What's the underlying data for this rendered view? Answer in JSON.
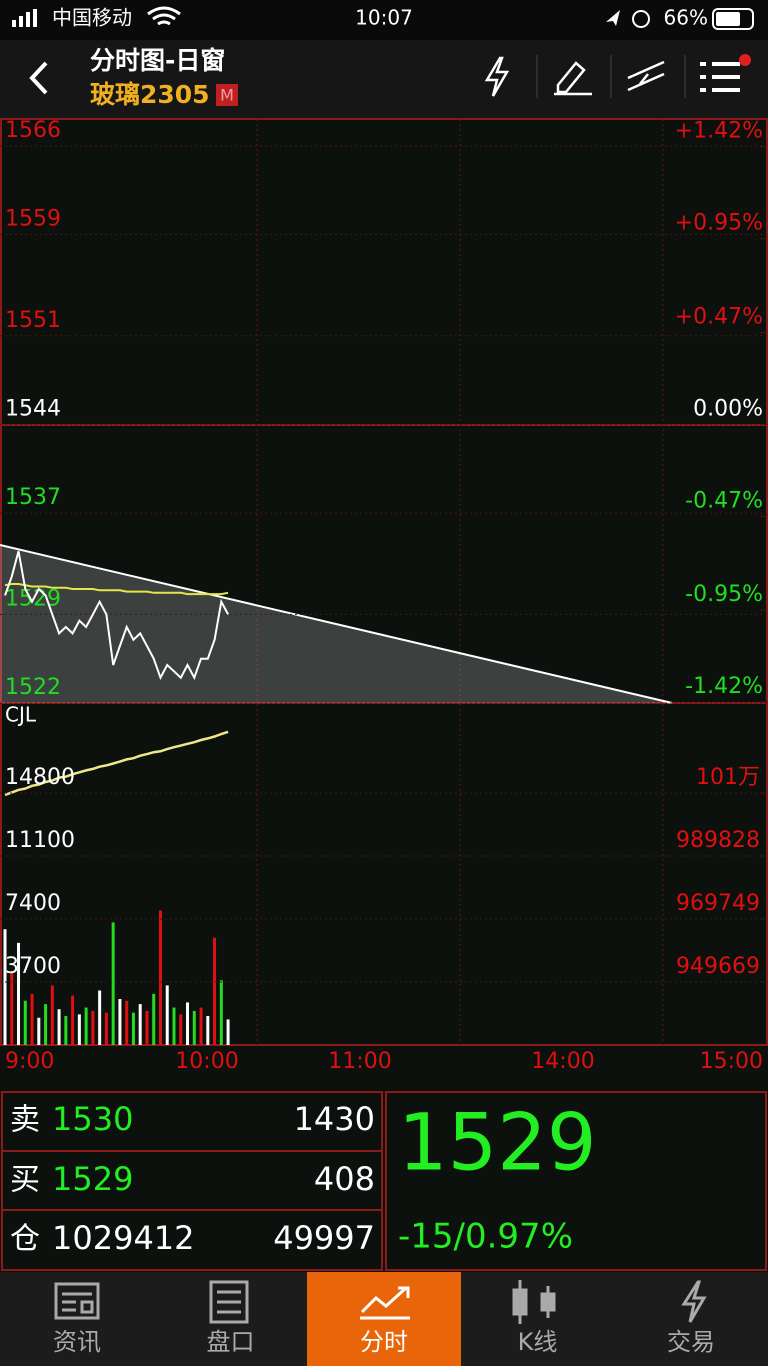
{
  "status_bar": {
    "carrier": "中国移动",
    "time": "10:07",
    "battery": "66%"
  },
  "header": {
    "title": "分时图-日窗",
    "symbol": "玻璃2305",
    "badge": "M"
  },
  "chart_data": [
    {
      "type": "line",
      "series": [
        {
          "color": "#ffffff",
          "values": [
            1530.5,
            1532,
            1534,
            1531,
            1530,
            1531,
            1530.5,
            1529,
            1527.5,
            1528,
            1527.5,
            1528.5,
            1528,
            1529,
            1530,
            1529,
            1525,
            1526.5,
            1528,
            1527,
            1527.5,
            1526.5,
            1525.5,
            1524,
            1525,
            1524.5,
            1524,
            1525,
            1524,
            1525.5,
            1525.5,
            1527,
            1530,
            1529
          ]
        },
        {
          "color": "#e6e64a",
          "values": [
            1531.3,
            1531.4,
            1531.4,
            1531.3,
            1531.2,
            1531.2,
            1531.2,
            1531.1,
            1531.1,
            1531.1,
            1531,
            1531,
            1531,
            1531,
            1530.9,
            1530.9,
            1530.9,
            1530.9,
            1530.8,
            1530.8,
            1530.8,
            1530.8,
            1530.7,
            1530.7,
            1530.7,
            1530.7,
            1530.7,
            1530.6,
            1530.6,
            1530.6,
            1530.6,
            1530.6,
            1530.6,
            1530.7
          ]
        }
      ],
      "ylim": [
        1522,
        1568.2
      ],
      "yticks": [
        1566,
        1559,
        1551,
        1544,
        1537,
        1529,
        1522
      ],
      "ytick_colors": [
        "#e01010",
        "#e01010",
        "#e01010",
        "#ffffff",
        "#22dd22",
        "#22dd22",
        "#22dd22"
      ],
      "y2lim": [
        -1.425,
        1.567
      ],
      "y2ticks": [
        {
          "value": 1.42,
          "label": "+1.42%"
        },
        {
          "value": 0.95,
          "label": "+0.95%"
        },
        {
          "value": 0.47,
          "label": "+0.47%"
        },
        {
          "value": 0,
          "label": "0.00%"
        },
        {
          "value": -0.47,
          "label": "-0.47%"
        },
        {
          "value": -0.95,
          "label": "-0.95%"
        },
        {
          "value": -1.42,
          "label": "-1.42%"
        }
      ],
      "y2tick_colors": [
        "#e01010",
        "#e01010",
        "#e01010",
        "#ffffff",
        "#22dd22",
        "#22dd22",
        "#22dd22"
      ]
    },
    {
      "type": "bar",
      "label": "CJL",
      "series": [
        {
          "values": [
            6800,
            4300,
            6000,
            2600,
            3000,
            1600,
            2400,
            3500,
            2100,
            1700,
            2900,
            1800,
            2200,
            2000,
            3200,
            1900,
            7200,
            2700,
            2600,
            1900,
            2400,
            2000,
            3000,
            7900,
            3500,
            2200,
            1800,
            2500,
            2000,
            2200,
            1700,
            6300,
            3800,
            1500
          ],
          "colors": [
            "#ffffff",
            "#e01010",
            "#ffffff",
            "#22dd22",
            "#e01010",
            "#ffffff",
            "#22dd22",
            "#e01010",
            "#ffffff",
            "#22dd22",
            "#e01010",
            "#ffffff",
            "#22dd22",
            "#e01010",
            "#ffffff",
            "#e01010",
            "#22dd22",
            "#ffffff",
            "#e01010",
            "#22dd22",
            "#ffffff",
            "#e01010",
            "#22dd22",
            "#e01010",
            "#ffffff",
            "#22dd22",
            "#e01010",
            "#ffffff",
            "#22dd22",
            "#e01010",
            "#ffffff",
            "#e01010",
            "#22dd22",
            "#ffffff"
          ]
        },
        {
          "axis": "y2",
          "color": "#f0e68c",
          "values": [
            1009300,
            1010100,
            1010900,
            1011300,
            1012200,
            1012600,
            1013400,
            1013900,
            1014800,
            1015100,
            1015900,
            1016500,
            1017100,
            1017600,
            1018300,
            1018700,
            1019300,
            1019900,
            1020600,
            1021000,
            1021800,
            1022300,
            1022900,
            1023200,
            1023900,
            1024500,
            1025000,
            1025600,
            1026100,
            1026800,
            1027300,
            1027900,
            1028700,
            1029412
          ]
        }
      ],
      "ylim": [
        0,
        20086
      ],
      "yticks": [
        14800,
        11100,
        7400,
        3700
      ],
      "ytick_color": "#ffffff",
      "y2lim": [
        929590,
        1038591
      ],
      "y2ticks": [
        {
          "value": 1009907,
          "label": "101万"
        },
        989828,
        969749,
        949669
      ],
      "y2tick_color": "#e01010"
    }
  ],
  "time_axis": [
    "9:00",
    "10:00",
    "11:00",
    "14:00",
    "15:00"
  ],
  "quote": {
    "rows": [
      [
        "卖",
        1530,
        1430
      ],
      [
        "买",
        1529,
        408
      ],
      [
        "仓",
        1029412,
        49997
      ]
    ],
    "last": 1529,
    "change": "-15/0.97%"
  },
  "tabs": [
    "资讯",
    "盘口",
    "分时",
    "K线",
    "交易"
  ]
}
